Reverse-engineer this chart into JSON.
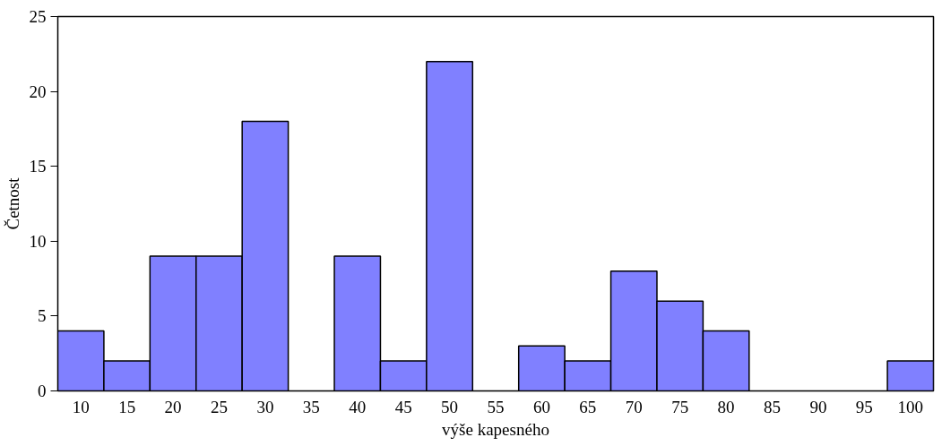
{
  "chart_data": {
    "type": "bar",
    "categories": [
      "10",
      "15",
      "20",
      "25",
      "30",
      "35",
      "40",
      "45",
      "50",
      "55",
      "60",
      "65",
      "70",
      "75",
      "80",
      "85",
      "90",
      "95",
      "100"
    ],
    "values": [
      4,
      2,
      9,
      9,
      18,
      0,
      9,
      2,
      22,
      0,
      3,
      2,
      8,
      6,
      4,
      0,
      0,
      0,
      2
    ],
    "color": "#8080ff",
    "ylim": [
      0,
      25
    ],
    "yticks": [
      0,
      5,
      10,
      15,
      20,
      25
    ],
    "xlabel": "výše kapesného",
    "ylabel": "Četnost"
  }
}
